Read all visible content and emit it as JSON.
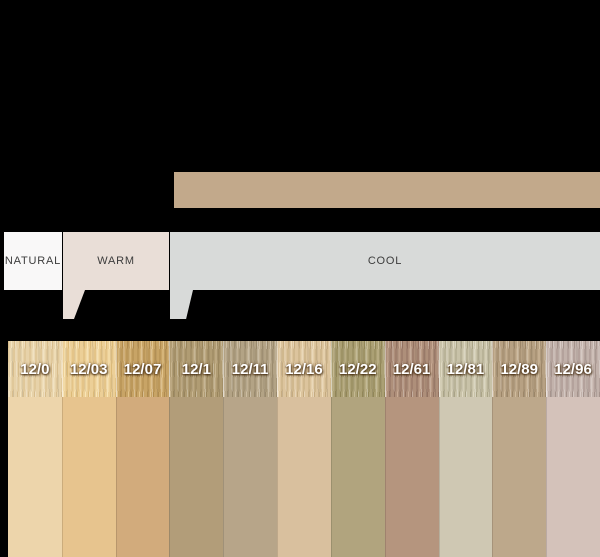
{
  "banner": {
    "color": "#c2a98b"
  },
  "categories": [
    {
      "id": "natural",
      "label": "NATURAL",
      "bg": "#f9f8f8"
    },
    {
      "id": "warm",
      "label": "WARM",
      "bg": "#e9ded7"
    },
    {
      "id": "cool",
      "label": "COOL",
      "bg": "#d8dad9"
    }
  ],
  "swatches": [
    {
      "code": "12/0",
      "group": "natural",
      "texture_base": "#e7d2a9",
      "texture_light": "#f4e5c2",
      "texture_dark": "#d8bd8c",
      "solid": "#edd5ab"
    },
    {
      "code": "12/03",
      "group": "warm",
      "texture_base": "#eccf97",
      "texture_light": "#f8e5b6",
      "texture_dark": "#dcba78",
      "solid": "#e7c48e"
    },
    {
      "code": "12/07",
      "group": "warm",
      "texture_base": "#c8a466",
      "texture_light": "#e2c48c",
      "texture_dark": "#b08b4e",
      "solid": "#d2ab7c"
    },
    {
      "code": "12/1",
      "group": "cool",
      "texture_base": "#b09c73",
      "texture_light": "#c8b590",
      "texture_dark": "#99855c",
      "solid": "#b29d79"
    },
    {
      "code": "12/11",
      "group": "cool",
      "texture_base": "#b3a385",
      "texture_light": "#ccbda2",
      "texture_dark": "#9a8a6c",
      "solid": "#b7a589"
    },
    {
      "code": "12/16",
      "group": "cool",
      "texture_base": "#dcc49d",
      "texture_light": "#eedcba",
      "texture_dark": "#c5ab80",
      "solid": "#d9c09e"
    },
    {
      "code": "12/22",
      "group": "cool",
      "texture_base": "#aba074",
      "texture_light": "#c4b992",
      "texture_dark": "#918657",
      "solid": "#b1a47e"
    },
    {
      "code": "12/61",
      "group": "cool",
      "texture_base": "#ae8f7a",
      "texture_light": "#c8aa94",
      "texture_dark": "#937261",
      "solid": "#b5957e"
    },
    {
      "code": "12/81",
      "group": "cool",
      "texture_base": "#c8c2a8",
      "texture_light": "#ded8c2",
      "texture_dark": "#aaa487",
      "solid": "#cfc8b3"
    },
    {
      "code": "12/89",
      "group": "cool",
      "texture_base": "#b7a183",
      "texture_light": "#d0bc9e",
      "texture_dark": "#9c8668",
      "solid": "#bda88b"
    },
    {
      "code": "12/96",
      "group": "cool",
      "texture_base": "#c2b2ab",
      "texture_light": "#d9ccc6",
      "texture_dark": "#a5938c",
      "solid": "#d4c2ba"
    }
  ]
}
